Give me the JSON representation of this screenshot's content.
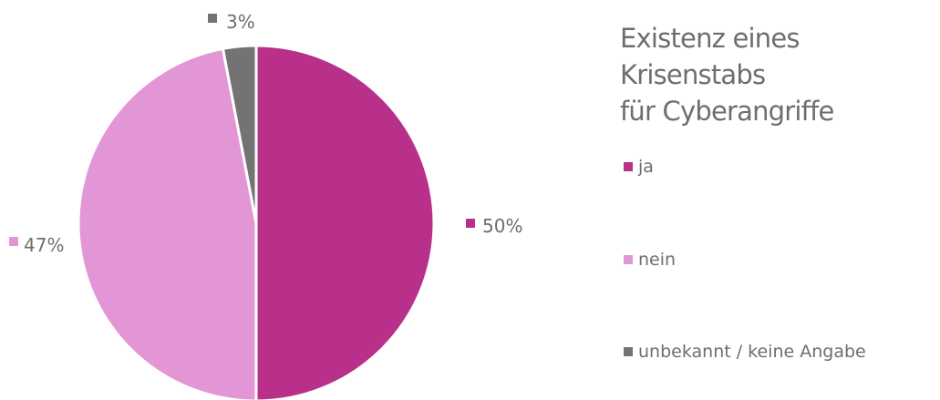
{
  "chart_data": {
    "type": "pie",
    "title": "Existenz eines Krisenstabs für Cyberangriffe",
    "title_lines": [
      "Existenz eines Krisenstabs",
      "für Cyberangriffe"
    ],
    "legend_position": "right",
    "slices": [
      {
        "label": "ja",
        "value": 50,
        "value_label": "50%",
        "color": "#b8308a"
      },
      {
        "label": "nein",
        "value": 47,
        "value_label": "47%",
        "color": "#e296d6"
      },
      {
        "label": "unbekannt / keine Angabe",
        "value": 3,
        "value_label": "3%",
        "color": "#737373"
      }
    ]
  }
}
